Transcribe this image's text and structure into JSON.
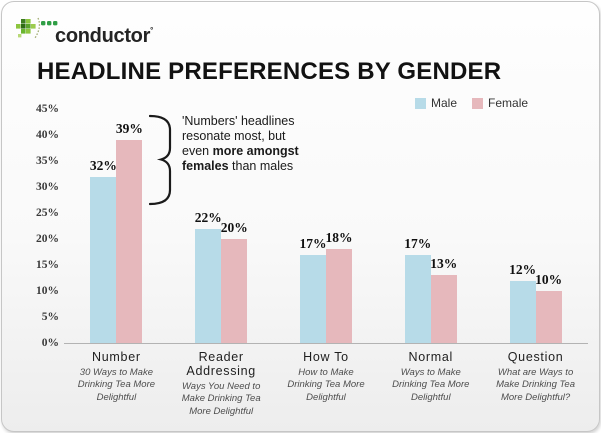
{
  "logo": {
    "brand": "conductor",
    "mark": "°",
    "icon": "pixel-cluster-arc-dots",
    "brand_greens": [
      "#8dc63f",
      "#3e7d1f",
      "#2f9e45"
    ]
  },
  "header": {
    "title": "HEADLINE PREFERENCES BY GENDER"
  },
  "annotation": {
    "lines": [
      [
        {
          "text": "'Numbers' headlines",
          "bold": false
        }
      ],
      [
        {
          "text": "resonate most, but",
          "bold": false
        }
      ],
      [
        {
          "text": "even ",
          "bold": false
        },
        {
          "text": "more amongst",
          "bold": true
        }
      ],
      [
        {
          "text": "females",
          "bold": true
        },
        {
          "text": " than males",
          "bold": false
        }
      ]
    ]
  },
  "chart_data": {
    "type": "bar",
    "title": "HEADLINE PREFERENCES BY GENDER",
    "categories": [
      "Number",
      "Reader Addressing",
      "How To",
      "Normal",
      "Question"
    ],
    "category_subtitles": [
      "30 Ways to Make Drinking Tea More Delightful",
      "Ways You Need to Make Drinking Tea More Delightful",
      "How to Make Drinking Tea More Delightful",
      "Ways to Make Drinking Tea More Delightful",
      "What are Ways to Make Drinking Tea More Delightful?"
    ],
    "series": [
      {
        "name": "Male",
        "color": "#b7dbe8",
        "values": [
          32,
          22,
          17,
          17,
          12
        ]
      },
      {
        "name": "Female",
        "color": "#e6b8bc",
        "values": [
          39,
          20,
          18,
          13,
          10
        ]
      }
    ],
    "unit": "%",
    "ylim": [
      0,
      45
    ],
    "ytick_step": 5,
    "yticks": [
      "45%",
      "40%",
      "35%",
      "30%",
      "25%",
      "20%",
      "15%",
      "10%",
      "5%",
      "0%"
    ],
    "legend_position": "top-right",
    "grid": false,
    "axis_color": "#b3b3b3"
  }
}
